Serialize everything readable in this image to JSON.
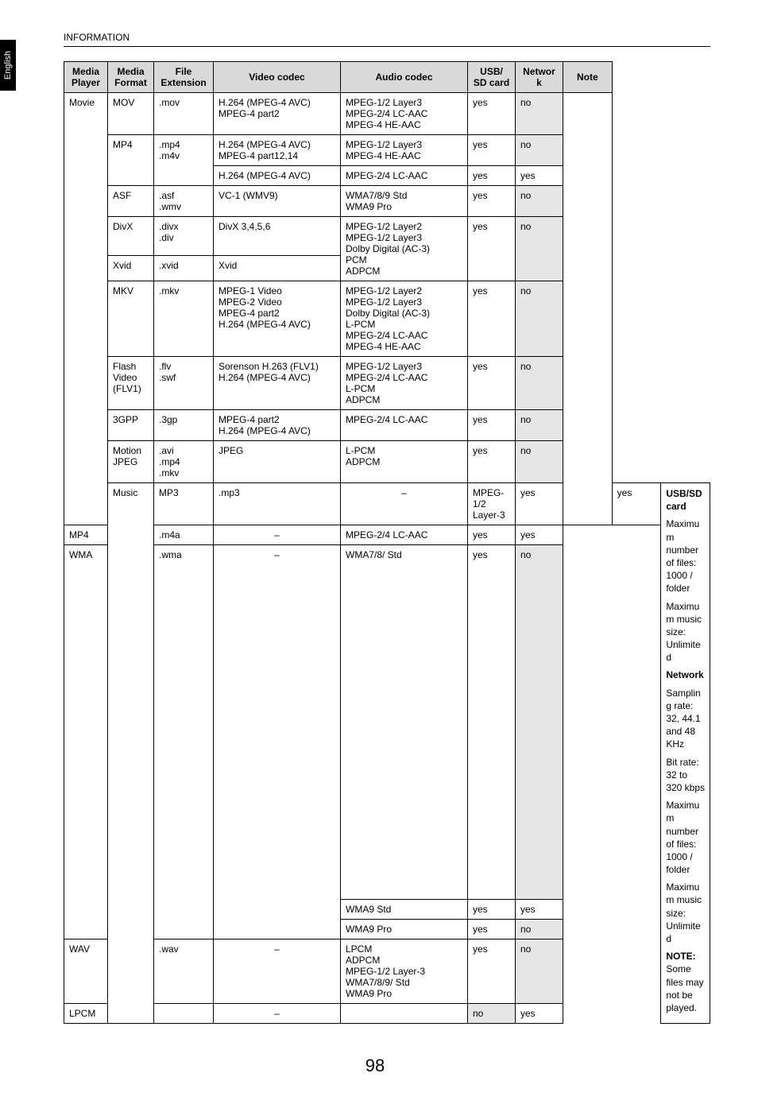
{
  "page": {
    "header": "INFORMATION",
    "sideTab": "English",
    "pageNumber": "98"
  },
  "headers": {
    "mediaPlayer": "Media Player",
    "mediaFormat": "Media Format",
    "fileExt": "File Extension",
    "videoCodec": "Video codec",
    "audioCodec": "Audio codec",
    "usb": "USB/ SD card",
    "network": "Network",
    "note": "Note"
  },
  "movieLabel": "Movie",
  "musicLabel": "Music",
  "movie": {
    "mov": {
      "format": "MOV",
      "ext": ".mov",
      "video": "H.264 (MPEG-4 AVC)\nMPEG-4 part2",
      "audio": "MPEG-1/2 Layer3\nMPEG-2/4 LC-AAC\nMPEG-4 HE-AAC",
      "usb": "yes",
      "net": "no"
    },
    "mp4a": {
      "format": "MP4",
      "ext": ".mp4\n.m4v",
      "video": "H.264 (MPEG-4 AVC)\nMPEG-4 part12,14",
      "audio": "MPEG-1/2 Layer3\nMPEG-4 HE-AAC",
      "usb": "yes",
      "net": "no"
    },
    "mp4b": {
      "video": "H.264 (MPEG-4 AVC)",
      "audio": "MPEG-2/4 LC-AAC",
      "usb": "yes",
      "net": "yes"
    },
    "asf": {
      "format": "ASF",
      "ext": ".asf\n.wmv",
      "video": "VC-1 (WMV9)",
      "audio": "WMA7/8/9 Std\nWMA9 Pro",
      "usb": "yes",
      "net": "no"
    },
    "divx": {
      "format": "DivX",
      "ext": ".divx\n.div",
      "video": "DivX 3,4,5,6",
      "audio": "MPEG-1/2 Layer2\nMPEG-1/2 Layer3\nDolby Digital (AC-3)\nPCM\nADPCM",
      "usb": "yes",
      "net": "no"
    },
    "xvid": {
      "format": "Xvid",
      "ext": ".xvid",
      "video": "Xvid"
    },
    "mkv": {
      "format": "MKV",
      "ext": ".mkv",
      "video": "MPEG-1 Video\nMPEG-2 Video\nMPEG-4 part2\nH.264 (MPEG-4 AVC)",
      "audio": "MPEG-1/2 Layer2\nMPEG-1/2 Layer3\nDolby Digital (AC-3)\nL-PCM\nMPEG-2/4 LC-AAC\nMPEG-4 HE-AAC",
      "usb": "yes",
      "net": "no"
    },
    "flash": {
      "format": "Flash Video (FLV1)",
      "ext": ".flv\n.swf",
      "video": "Sorenson H.263 (FLV1)\nH.264 (MPEG-4 AVC)",
      "audio": "MPEG-1/2 Layer3\nMPEG-2/4 LC-AAC\nL-PCM\nADPCM",
      "usb": "yes",
      "net": "no"
    },
    "gpp": {
      "format": "3GPP",
      "ext": ".3gp",
      "video": "MPEG-4 part2\nH.264 (MPEG-4 AVC)",
      "audio": "MPEG-2/4 LC-AAC",
      "usb": "yes",
      "net": "no"
    },
    "mjpeg": {
      "format": "Motion JPEG",
      "ext": ".avi\n.mp4\n.mkv",
      "video": "JPEG",
      "audio": "L-PCM\nADPCM",
      "usb": "yes",
      "net": "no"
    }
  },
  "music": {
    "mp3": {
      "format": "MP3",
      "ext": ".mp3",
      "video": "–",
      "audio": "MPEG-1/2 Layer-3",
      "usb": "yes",
      "net": "yes"
    },
    "mp4": {
      "format": "MP4",
      "ext": ".m4a",
      "video": "–",
      "audio": "MPEG-2/4 LC-AAC",
      "usb": "yes",
      "net": "yes"
    },
    "wma1": {
      "format": "WMA",
      "ext": ".wma",
      "video": "–",
      "audio": "WMA7/8/ Std",
      "usb": "yes",
      "net": "no"
    },
    "wma2": {
      "audio": "WMA9 Std",
      "usb": "yes",
      "net": "yes"
    },
    "wma3": {
      "audio": "WMA9 Pro",
      "usb": "yes",
      "net": "no"
    },
    "wav": {
      "format": "WAV",
      "ext": ".wav",
      "video": "–",
      "audio": "LPCM\nADPCM\nMPEG-1/2 Layer-3\nWMA7/8/9/ Std\nWMA9 Pro",
      "usb": "yes",
      "net": "no"
    },
    "lpcm": {
      "format": "LPCM",
      "ext": "",
      "video": "–",
      "audio": "",
      "usb": "no",
      "net": "yes"
    }
  },
  "noteText": {
    "t1": "USB/SD card",
    "t2": "Maximum number of files: 1000 / folder",
    "t3": "Maximum music size: Unlimited",
    "t4": "Network",
    "t5": "Sampling rate: 32, 44.1 and 48 KHz",
    "t6": "Bit rate: 32 to 320 kbps",
    "t7": "Maximum number of files: 1000 / folder",
    "t8": "Maximum music size: Unlimited",
    "t9a": "NOTE:",
    "t9b": " Some files may not be played."
  }
}
